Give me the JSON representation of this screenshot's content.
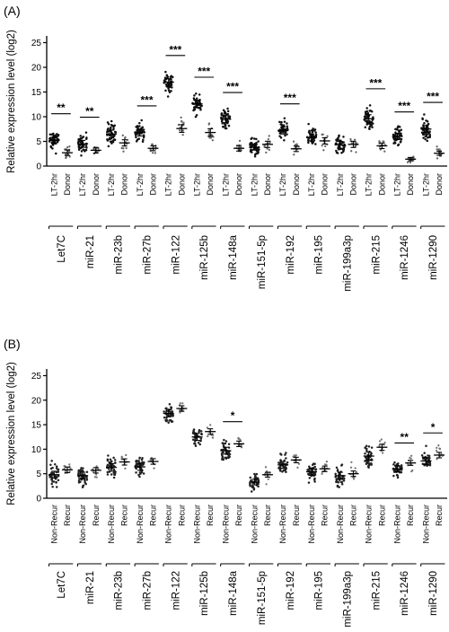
{
  "panels": [
    {
      "label": "(A)",
      "ylabel": "Relative expression level (log2)",
      "yticks": [
        0,
        5,
        10,
        15,
        20,
        25
      ],
      "ylim": [
        0,
        26
      ],
      "group_labels": [
        "LT-2hr",
        "Donor"
      ],
      "mirnas": [
        "Let7C",
        "miR-21",
        "miR-23b",
        "miR-27b",
        "miR-122",
        "miR-125b",
        "miR-148a",
        "miR-151-5p",
        "miR-192",
        "miR-195",
        "miR-199a3p",
        "miR-215",
        "miR-1246",
        "miR-1290"
      ],
      "significance": [
        {
          "index": 0,
          "text": "**"
        },
        {
          "index": 1,
          "text": "**"
        },
        {
          "index": 3,
          "text": "***"
        },
        {
          "index": 4,
          "text": "***"
        },
        {
          "index": 5,
          "text": "***"
        },
        {
          "index": 6,
          "text": "***"
        },
        {
          "index": 8,
          "text": "***"
        },
        {
          "index": 11,
          "text": "***"
        },
        {
          "index": 12,
          "text": "***"
        },
        {
          "index": 13,
          "text": "***"
        }
      ]
    },
    {
      "label": "(B)",
      "ylabel": "Relative expression level (log2)",
      "yticks": [
        0,
        5,
        10,
        15,
        20,
        25
      ],
      "ylim": [
        0,
        26
      ],
      "group_labels": [
        "Non-Recur",
        "Recur"
      ],
      "mirnas": [
        "Let7C",
        "miR-21",
        "miR-23b",
        "miR-27b",
        "miR-122",
        "miR-125b",
        "miR-148a",
        "miR-151-5p",
        "miR-192",
        "miR-195",
        "miR-199a3p",
        "miR-215",
        "miR-1246",
        "miR-1290"
      ],
      "significance": [
        {
          "index": 6,
          "text": "*"
        },
        {
          "index": 12,
          "text": "**"
        },
        {
          "index": 13,
          "text": "*"
        }
      ]
    }
  ],
  "chart_data": [
    {
      "type": "scatter",
      "title": "",
      "xlabel": "",
      "ylabel": "Relative expression level (log2)",
      "ylim": [
        0,
        26
      ],
      "grid": false,
      "categories": [
        "Let7C",
        "miR-21",
        "miR-23b",
        "miR-27b",
        "miR-122",
        "miR-125b",
        "miR-148a",
        "miR-151-5p",
        "miR-192",
        "miR-195",
        "miR-199a3p",
        "miR-215",
        "miR-1246",
        "miR-1290"
      ],
      "series": [
        {
          "name": "LT-2hr",
          "means": [
            5.2,
            4.5,
            6.5,
            6.8,
            17.0,
            12.6,
            9.5,
            3.8,
            7.2,
            5.8,
            4.3,
            9.6,
            6.0,
            7.5
          ],
          "sd": [
            2.0,
            2.0,
            2.2,
            2.0,
            2.0,
            2.0,
            2.0,
            1.6,
            2.0,
            2.0,
            2.0,
            2.3,
            1.8,
            2.0
          ]
        },
        {
          "name": "Donor",
          "means": [
            2.7,
            3.2,
            4.7,
            3.6,
            7.6,
            6.8,
            3.6,
            4.4,
            3.5,
            5.1,
            4.4,
            4.1,
            1.4,
            2.6
          ],
          "sd": [
            1.6,
            1.6,
            1.8,
            1.4,
            2.2,
            2.2,
            1.6,
            1.8,
            1.6,
            1.8,
            1.8,
            1.6,
            1.0,
            1.2
          ]
        }
      ]
    },
    {
      "type": "scatter",
      "title": "",
      "xlabel": "",
      "ylabel": "Relative expression level (log2)",
      "ylim": [
        0,
        26
      ],
      "grid": false,
      "categories": [
        "Let7C",
        "miR-21",
        "miR-23b",
        "miR-27b",
        "miR-122",
        "miR-125b",
        "miR-148a",
        "miR-151-5p",
        "miR-192",
        "miR-195",
        "miR-199a3p",
        "miR-215",
        "miR-1246",
        "miR-1290"
      ],
      "series": [
        {
          "name": "Non-Recur",
          "means": [
            4.8,
            4.6,
            6.3,
            6.4,
            17.3,
            12.5,
            9.7,
            3.3,
            6.8,
            5.4,
            4.6,
            8.6,
            6.0,
            7.6
          ],
          "sd": [
            2.0,
            2.0,
            2.2,
            2.0,
            2.0,
            2.0,
            2.0,
            1.6,
            2.0,
            2.0,
            2.0,
            2.3,
            1.8,
            2.0
          ]
        },
        {
          "name": "Recur",
          "means": [
            5.8,
            5.7,
            7.4,
            7.5,
            18.3,
            13.6,
            11.1,
            4.8,
            7.8,
            6.0,
            5.0,
            10.4,
            7.2,
            8.8
          ],
          "sd": [
            1.6,
            1.6,
            1.8,
            1.6,
            1.6,
            1.6,
            1.6,
            1.4,
            1.6,
            1.6,
            1.6,
            1.8,
            1.4,
            1.6
          ]
        }
      ]
    }
  ]
}
